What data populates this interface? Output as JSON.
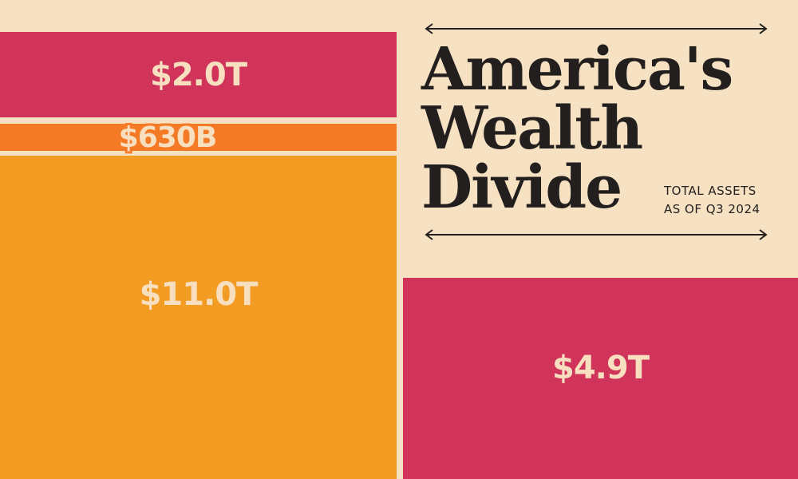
{
  "chart_data": {
    "type": "treemap",
    "title_lines": [
      "America's",
      "Wealth",
      "Divide"
    ],
    "subtitle_lines": [
      "TOTAL ASSETS",
      "AS OF Q3 2024"
    ],
    "blocks": [
      {
        "id": "top",
        "value": 2.0,
        "unit": "T",
        "label": "$2.0T",
        "color": "#d1345b"
      },
      {
        "id": "thin",
        "value": 0.63,
        "unit": "T",
        "label": "$630B",
        "color": "#f47a26"
      },
      {
        "id": "big",
        "value": 11.0,
        "unit": "T",
        "label": "$11.0T",
        "color": "#f29c24"
      },
      {
        "id": "right",
        "value": 4.9,
        "unit": "T",
        "label": "$4.9T",
        "color": "#d1345b"
      }
    ]
  },
  "colors": {
    "background": "#f6e2c2",
    "ink": "#231f1f",
    "label_text": "#f7dfc0"
  }
}
